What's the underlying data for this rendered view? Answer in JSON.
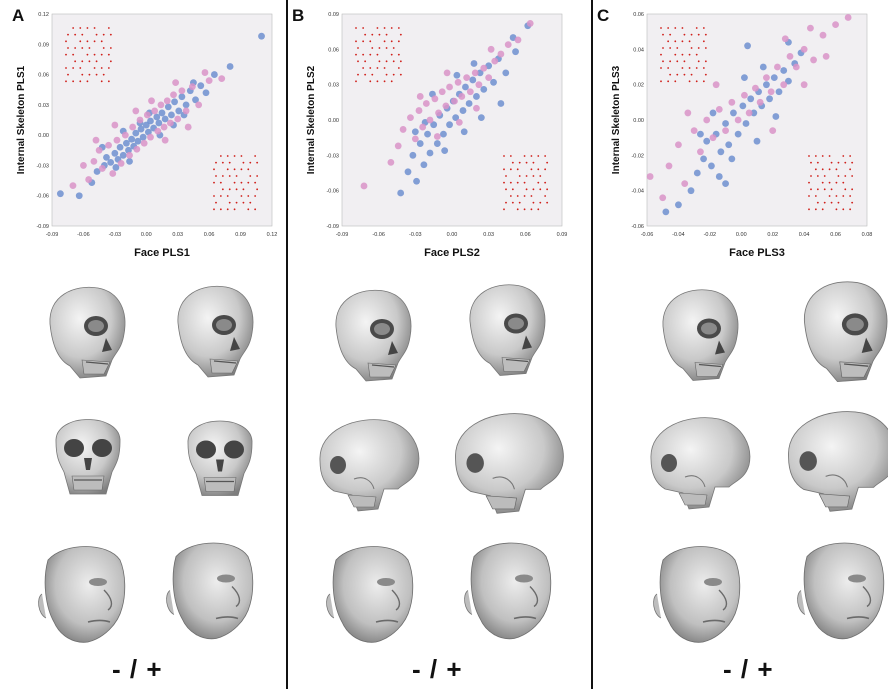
{
  "colors": {
    "blue": "#6f8fd0",
    "pink": "#d993c8",
    "plot_bg": "#f1eff2",
    "landmark": "#d0201b",
    "bone": "#d9d9d9",
    "skin": "#cfcfcf"
  },
  "panels": [
    {
      "letter": "A",
      "sign": "- / +"
    },
    {
      "letter": "B",
      "sign": "- / +"
    },
    {
      "letter": "C",
      "sign": "- / +"
    }
  ],
  "chart_data": [
    {
      "type": "scatter",
      "title": "",
      "xlabel": "Face PLS1",
      "ylabel": "Internal Skeleton PLS1",
      "xlim": [
        -0.09,
        0.12
      ],
      "ylim": [
        -0.09,
        0.12
      ],
      "xticks": [
        "-0.09",
        "-0.06",
        "-0.03",
        "0.00",
        "0.03",
        "0.06",
        "0.09",
        "0.12"
      ],
      "yticks": [
        "0.12",
        "0.09",
        "0.06",
        "0.03",
        "0.00",
        "-0.03",
        "-0.06",
        "-0.09"
      ],
      "xtick_values": [
        -0.09,
        -0.06,
        -0.03,
        0,
        0.03,
        0.06,
        0.09,
        0.12
      ],
      "ytick_values": [
        0.12,
        0.09,
        0.06,
        0.03,
        0,
        -0.03,
        -0.06,
        -0.09
      ],
      "series": [
        {
          "values": [
            [
              -0.082,
              -0.058
            ],
            [
              -0.064,
              -0.06
            ],
            [
              -0.052,
              -0.047
            ],
            [
              -0.047,
              -0.036
            ],
            [
              -0.04,
              -0.03
            ],
            [
              -0.038,
              -0.022
            ],
            [
              -0.034,
              -0.027
            ],
            [
              -0.03,
              -0.018
            ],
            [
              -0.027,
              -0.024
            ],
            [
              -0.025,
              -0.012
            ],
            [
              -0.022,
              -0.02
            ],
            [
              -0.019,
              -0.008
            ],
            [
              -0.017,
              -0.015
            ],
            [
              -0.014,
              -0.004
            ],
            [
              -0.012,
              -0.011
            ],
            [
              -0.01,
              0.002
            ],
            [
              -0.008,
              -0.006
            ],
            [
              -0.005,
              0.006
            ],
            [
              -0.003,
              -0.002
            ],
            [
              0.0,
              0.01
            ],
            [
              0.002,
              0.003
            ],
            [
              0.004,
              0.014
            ],
            [
              0.007,
              0.007
            ],
            [
              0.01,
              0.018
            ],
            [
              0.012,
              0.012
            ],
            [
              0.015,
              0.022
            ],
            [
              0.018,
              0.016
            ],
            [
              0.021,
              0.028
            ],
            [
              0.024,
              0.02
            ],
            [
              0.027,
              0.033
            ],
            [
              0.031,
              0.024
            ],
            [
              0.034,
              0.038
            ],
            [
              0.038,
              0.03
            ],
            [
              0.042,
              0.044
            ],
            [
              0.047,
              0.035
            ],
            [
              0.052,
              0.049
            ],
            [
              0.057,
              0.042
            ],
            [
              0.065,
              0.06
            ],
            [
              0.08,
              0.068
            ],
            [
              0.11,
              0.098
            ],
            [
              -0.042,
              -0.012
            ],
            [
              -0.029,
              -0.032
            ],
            [
              -0.016,
              -0.026
            ],
            [
              -0.006,
              0.012
            ],
            [
              0.013,
              0.0
            ],
            [
              0.026,
              0.01
            ],
            [
              0.036,
              0.02
            ],
            [
              -0.022,
              0.004
            ],
            [
              0.003,
              0.022
            ],
            [
              0.045,
              0.052
            ]
          ]
        },
        {
          "values": [
            [
              -0.06,
              -0.03
            ],
            [
              -0.055,
              -0.044
            ],
            [
              -0.05,
              -0.026
            ],
            [
              -0.045,
              -0.015
            ],
            [
              -0.042,
              -0.033
            ],
            [
              -0.036,
              -0.01
            ],
            [
              -0.032,
              -0.038
            ],
            [
              -0.028,
              -0.005
            ],
            [
              -0.024,
              -0.028
            ],
            [
              -0.02,
              0.0
            ],
            [
              -0.016,
              -0.02
            ],
            [
              -0.013,
              0.008
            ],
            [
              -0.009,
              -0.014
            ],
            [
              -0.006,
              0.015
            ],
            [
              -0.002,
              -0.008
            ],
            [
              0.001,
              0.02
            ],
            [
              0.004,
              -0.002
            ],
            [
              0.008,
              0.024
            ],
            [
              0.011,
              0.004
            ],
            [
              0.014,
              0.03
            ],
            [
              0.017,
              0.008
            ],
            [
              0.02,
              0.034
            ],
            [
              0.023,
              0.012
            ],
            [
              0.026,
              0.04
            ],
            [
              0.03,
              0.016
            ],
            [
              0.034,
              0.044
            ],
            [
              0.038,
              0.024
            ],
            [
              0.044,
              0.048
            ],
            [
              0.05,
              0.03
            ],
            [
              0.06,
              0.054
            ],
            [
              0.072,
              0.056
            ],
            [
              -0.07,
              -0.05
            ],
            [
              -0.048,
              -0.005
            ],
            [
              -0.01,
              0.024
            ],
            [
              0.018,
              -0.005
            ],
            [
              0.04,
              0.008
            ],
            [
              0.028,
              0.052
            ],
            [
              -0.03,
              0.01
            ],
            [
              0.005,
              0.034
            ],
            [
              0.056,
              0.062
            ]
          ]
        }
      ]
    },
    {
      "type": "scatter",
      "title": "",
      "xlabel": "Face PLS2",
      "ylabel": "Internal Skeleton PLS2",
      "xlim": [
        -0.09,
        0.09
      ],
      "ylim": [
        -0.09,
        0.09
      ],
      "xticks": [
        "-0.09",
        "-0.06",
        "-0.03",
        "0.00",
        "0.03",
        "0.06",
        "0.09"
      ],
      "yticks": [
        "0.09",
        "0.06",
        "0.03",
        "0.00",
        "-0.03",
        "-0.06",
        "-0.09"
      ],
      "xtick_values": [
        -0.09,
        -0.06,
        -0.03,
        0,
        0.03,
        0.06,
        0.09
      ],
      "ytick_values": [
        0.09,
        0.06,
        0.03,
        0,
        -0.03,
        -0.06,
        -0.09
      ],
      "series": [
        {
          "values": [
            [
              -0.042,
              -0.062
            ],
            [
              -0.036,
              -0.044
            ],
            [
              -0.032,
              -0.03
            ],
            [
              -0.029,
              -0.052
            ],
            [
              -0.026,
              -0.02
            ],
            [
              -0.023,
              -0.038
            ],
            [
              -0.02,
              -0.012
            ],
            [
              -0.018,
              -0.028
            ],
            [
              -0.015,
              -0.004
            ],
            [
              -0.012,
              -0.02
            ],
            [
              -0.01,
              0.004
            ],
            [
              -0.007,
              -0.012
            ],
            [
              -0.004,
              0.01
            ],
            [
              -0.002,
              -0.004
            ],
            [
              0.001,
              0.016
            ],
            [
              0.003,
              0.002
            ],
            [
              0.006,
              0.022
            ],
            [
              0.009,
              0.008
            ],
            [
              0.011,
              0.028
            ],
            [
              0.014,
              0.014
            ],
            [
              0.017,
              0.034
            ],
            [
              0.02,
              0.02
            ],
            [
              0.023,
              0.04
            ],
            [
              0.026,
              0.026
            ],
            [
              0.03,
              0.046
            ],
            [
              0.034,
              0.032
            ],
            [
              0.038,
              0.052
            ],
            [
              0.044,
              0.04
            ],
            [
              0.052,
              0.058
            ],
            [
              0.062,
              0.08
            ],
            [
              -0.022,
              -0.002
            ],
            [
              -0.006,
              -0.026
            ],
            [
              0.01,
              -0.01
            ],
            [
              0.024,
              0.002
            ],
            [
              -0.016,
              0.022
            ],
            [
              0.004,
              0.038
            ],
            [
              0.04,
              0.014
            ],
            [
              -0.03,
              -0.01
            ],
            [
              0.018,
              0.048
            ],
            [
              0.05,
              0.07
            ]
          ]
        },
        {
          "values": [
            [
              -0.072,
              -0.056
            ],
            [
              -0.05,
              -0.036
            ],
            [
              -0.044,
              -0.022
            ],
            [
              -0.04,
              -0.008
            ],
            [
              -0.034,
              0.002
            ],
            [
              -0.03,
              -0.016
            ],
            [
              -0.027,
              0.008
            ],
            [
              -0.024,
              -0.006
            ],
            [
              -0.021,
              0.014
            ],
            [
              -0.018,
              0.0
            ],
            [
              -0.014,
              0.018
            ],
            [
              -0.011,
              0.006
            ],
            [
              -0.008,
              0.024
            ],
            [
              -0.005,
              0.012
            ],
            [
              -0.002,
              0.028
            ],
            [
              0.002,
              0.016
            ],
            [
              0.005,
              0.032
            ],
            [
              0.008,
              0.02
            ],
            [
              0.012,
              0.036
            ],
            [
              0.015,
              0.024
            ],
            [
              0.019,
              0.04
            ],
            [
              0.022,
              0.03
            ],
            [
              0.026,
              0.044
            ],
            [
              0.03,
              0.036
            ],
            [
              0.035,
              0.05
            ],
            [
              0.04,
              0.056
            ],
            [
              0.046,
              0.064
            ],
            [
              0.054,
              0.068
            ],
            [
              0.064,
              0.082
            ],
            [
              -0.012,
              -0.014
            ],
            [
              0.006,
              -0.002
            ],
            [
              0.02,
              0.01
            ],
            [
              -0.026,
              0.02
            ],
            [
              0.032,
              0.06
            ],
            [
              -0.004,
              0.04
            ]
          ]
        }
      ]
    },
    {
      "type": "scatter",
      "title": "",
      "xlabel": "Face PLS3",
      "ylabel": "Internal Skeleton PLS3",
      "xlim": [
        -0.06,
        0.08
      ],
      "ylim": [
        -0.06,
        0.06
      ],
      "xticks": [
        "-0.06",
        "-0.04",
        "-0.02",
        "0.00",
        "0.02",
        "0.04",
        "0.06",
        "0.08"
      ],
      "yticks": [
        "0.06",
        "0.04",
        "0.02",
        "0.00",
        "-0.02",
        "-0.04",
        "-0.06"
      ],
      "xtick_values": [
        -0.06,
        -0.04,
        -0.02,
        0,
        0.02,
        0.04,
        0.06,
        0.08
      ],
      "ytick_values": [
        0.06,
        0.04,
        0.02,
        0,
        -0.02,
        -0.04,
        -0.06
      ],
      "series": [
        {
          "values": [
            [
              -0.048,
              -0.052
            ],
            [
              -0.04,
              -0.048
            ],
            [
              -0.032,
              -0.04
            ],
            [
              -0.028,
              -0.03
            ],
            [
              -0.024,
              -0.022
            ],
            [
              -0.022,
              -0.012
            ],
            [
              -0.019,
              -0.026
            ],
            [
              -0.016,
              -0.008
            ],
            [
              -0.013,
              -0.018
            ],
            [
              -0.01,
              -0.002
            ],
            [
              -0.008,
              -0.014
            ],
            [
              -0.005,
              0.004
            ],
            [
              -0.002,
              -0.008
            ],
            [
              0.001,
              0.008
            ],
            [
              0.003,
              -0.002
            ],
            [
              0.006,
              0.012
            ],
            [
              0.008,
              0.004
            ],
            [
              0.011,
              0.016
            ],
            [
              0.013,
              0.008
            ],
            [
              0.016,
              0.02
            ],
            [
              0.018,
              0.012
            ],
            [
              0.021,
              0.024
            ],
            [
              0.024,
              0.016
            ],
            [
              0.027,
              0.028
            ],
            [
              0.03,
              0.022
            ],
            [
              0.034,
              0.032
            ],
            [
              0.038,
              0.038
            ],
            [
              0.004,
              0.042
            ],
            [
              -0.014,
              -0.032
            ],
            [
              -0.006,
              -0.022
            ],
            [
              0.01,
              -0.012
            ],
            [
              0.022,
              0.002
            ],
            [
              -0.018,
              0.004
            ],
            [
              0.002,
              0.024
            ],
            [
              0.03,
              0.044
            ],
            [
              -0.026,
              -0.008
            ],
            [
              0.014,
              0.03
            ],
            [
              -0.01,
              -0.036
            ]
          ]
        },
        {
          "values": [
            [
              -0.058,
              -0.032
            ],
            [
              -0.046,
              -0.026
            ],
            [
              -0.04,
              -0.014
            ],
            [
              -0.036,
              -0.036
            ],
            [
              -0.03,
              -0.006
            ],
            [
              -0.026,
              -0.018
            ],
            [
              -0.022,
              0.0
            ],
            [
              -0.018,
              -0.01
            ],
            [
              -0.014,
              0.006
            ],
            [
              -0.01,
              -0.006
            ],
            [
              -0.006,
              0.01
            ],
            [
              -0.002,
              0.0
            ],
            [
              0.002,
              0.014
            ],
            [
              0.005,
              0.004
            ],
            [
              0.009,
              0.018
            ],
            [
              0.012,
              0.01
            ],
            [
              0.016,
              0.024
            ],
            [
              0.019,
              0.016
            ],
            [
              0.023,
              0.03
            ],
            [
              0.027,
              0.02
            ],
            [
              0.031,
              0.036
            ],
            [
              0.035,
              0.03
            ],
            [
              0.04,
              0.04
            ],
            [
              0.046,
              0.034
            ],
            [
              0.052,
              0.048
            ],
            [
              0.06,
              0.054
            ],
            [
              0.068,
              0.058
            ],
            [
              -0.05,
              -0.044
            ],
            [
              -0.016,
              0.02
            ],
            [
              0.02,
              -0.006
            ],
            [
              0.04,
              0.02
            ],
            [
              0.044,
              0.052
            ],
            [
              -0.034,
              0.004
            ],
            [
              0.028,
              0.046
            ],
            [
              0.054,
              0.036
            ]
          ]
        }
      ]
    }
  ]
}
